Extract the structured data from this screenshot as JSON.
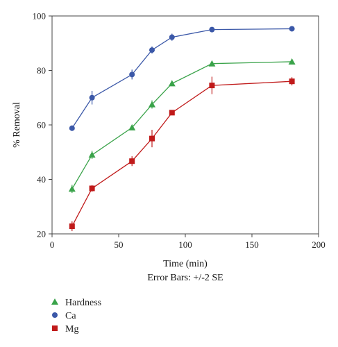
{
  "chart_data": {
    "type": "line",
    "xlabel": "Time (min)",
    "ylabel": "% Removal",
    "note": "Error Bars: +/-2 SE",
    "xlim": [
      0,
      200
    ],
    "ylim": [
      20,
      100
    ],
    "xticks": [
      0,
      50,
      100,
      150,
      200
    ],
    "yticks": [
      20,
      40,
      60,
      80,
      100
    ],
    "x": [
      15,
      30,
      60,
      75,
      90,
      120,
      180
    ],
    "legend_position": "bottom-left",
    "series": [
      {
        "name": "Hardness",
        "marker": "triangle",
        "color": "#3aa34a",
        "values": [
          36.5,
          49.0,
          59.0,
          67.5,
          75.2,
          82.5,
          83.2
        ],
        "errors": [
          1.5,
          1.5,
          0.8,
          1.5,
          0.8,
          0.8,
          1.0
        ]
      },
      {
        "name": "Ca",
        "marker": "circle",
        "color": "#3b58a8",
        "values": [
          58.8,
          70.0,
          78.5,
          87.5,
          92.2,
          95.0,
          95.3
        ],
        "errors": [
          1.0,
          2.5,
          1.8,
          1.3,
          1.3,
          0.5,
          0.8
        ]
      },
      {
        "name": "Mg",
        "marker": "square",
        "color": "#c01a1a",
        "values": [
          22.8,
          36.7,
          46.7,
          55.0,
          64.5,
          74.5,
          76.0
        ],
        "errors": [
          1.8,
          1.2,
          1.8,
          3.2,
          0.5,
          3.2,
          1.5
        ]
      }
    ]
  }
}
